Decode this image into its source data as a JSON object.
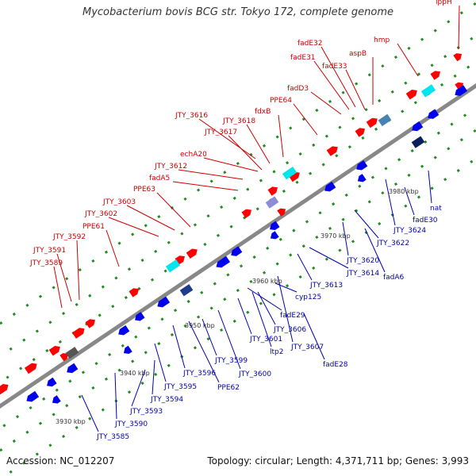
{
  "title": "Mycobacterium bovis BCG str. Tokyo 172, complete genome",
  "footer": {
    "accession": "Accession: NC_012207",
    "summary": "Topology: circular; Length: 4,371,711 bp; Genes: 3,993"
  },
  "colors": {
    "forward_gene": "#ff0000",
    "reverse_gene": "#0000ee",
    "forward_label": "#cc0000",
    "reverse_label": "#0000aa",
    "backbone": "#888888",
    "gc_dash": "#228b22",
    "rna_gene": "#00e5ee",
    "other_feature": "#8c8cd8"
  },
  "scale_labels": [
    "3930 kbp",
    "3940 kbp",
    "3950 kbp",
    "3960 kbp",
    "3970 kbp",
    "3980 kbp"
  ],
  "forward_genes": [
    "JTY_3589",
    "JTY_3591",
    "JTY_3592",
    "PPE61",
    "JTY_3602",
    "JTY_3603",
    "PPE63",
    "fadA5",
    "JTY_3612",
    "echA20",
    "JTY_3617",
    "JTY_3616",
    "JTY_3618",
    "fdxB",
    "PPE64",
    "fadD3",
    "fadE31",
    "fadE32",
    "fadE33",
    "aspB",
    "hmp",
    "lppH"
  ],
  "reverse_genes": [
    "JTY_3585",
    "JTY_3590",
    "JTY_3593",
    "JTY_3594",
    "JTY_3595",
    "JTY_3596",
    "PPE62",
    "JTY_3599",
    "JTY_3600",
    "JTY_3601",
    "ltp2",
    "JTY_3606",
    "JTY_3607",
    "fadE29",
    "fadE28",
    "cyp125",
    "JTY_3613",
    "JTY_3614",
    "JTY_3620",
    "fadA6",
    "JTY_3622",
    "JTY_3624",
    "fadE30",
    "nat"
  ]
}
